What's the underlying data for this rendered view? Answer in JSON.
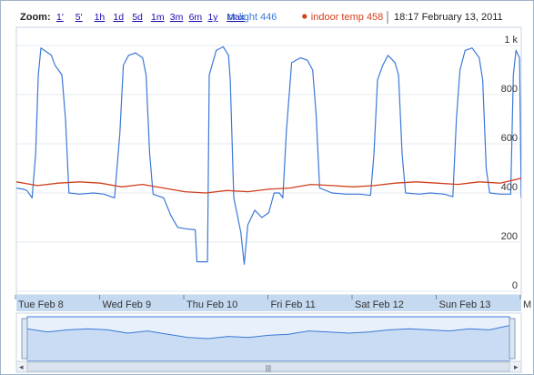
{
  "toolbar": {
    "zoom_label": "Zoom:",
    "zoom_options": [
      "1'",
      "5'",
      "1h",
      "1d",
      "5d",
      "1m",
      "3m",
      "6m",
      "1y",
      "Max"
    ],
    "date_stamp": "18:17 February 13, 2011"
  },
  "legend": [
    {
      "label": "or light 446",
      "color": "#3c78d8"
    },
    {
      "label": "indoor temp 458",
      "color": "#d2401e"
    }
  ],
  "navigator": {
    "grip": "|||"
  },
  "chart_data": {
    "type": "line",
    "x_ticks": [
      "Tue Feb 8",
      "Wed Feb 9",
      "Thu Feb 10",
      "Fri Feb 11",
      "Sat Feb 12",
      "Sun Feb 13",
      "M"
    ],
    "y_ticks": [
      "0",
      "200",
      "400",
      "600",
      "800",
      "1 k"
    ],
    "ylim": [
      0,
      1000
    ],
    "xlim": [
      "2011-02-08T00:00",
      "2011-02-14T00:00"
    ],
    "grid": "horizontal",
    "series": [
      {
        "name": "or light",
        "color": "#3c78d8",
        "points": [
          [
            "2011-02-08T00:00",
            420
          ],
          [
            "2011-02-08T02:00",
            415
          ],
          [
            "2011-02-08T03:00",
            410
          ],
          [
            "2011-02-08T04:30",
            380
          ],
          [
            "2011-02-08T05:30",
            560
          ],
          [
            "2011-02-08T06:15",
            880
          ],
          [
            "2011-02-08T07:00",
            990
          ],
          [
            "2011-02-08T08:30",
            975
          ],
          [
            "2011-02-08T10:00",
            960
          ],
          [
            "2011-02-08T11:00",
            920
          ],
          [
            "2011-02-08T12:00",
            900
          ],
          [
            "2011-02-08T13:00",
            880
          ],
          [
            "2011-02-08T14:00",
            700
          ],
          [
            "2011-02-08T15:00",
            400
          ],
          [
            "2011-02-08T18:00",
            395
          ],
          [
            "2011-02-08T22:00",
            400
          ],
          [
            "2011-02-09T01:00",
            395
          ],
          [
            "2011-02-09T04:00",
            380
          ],
          [
            "2011-02-09T05:30",
            640
          ],
          [
            "2011-02-09T06:30",
            920
          ],
          [
            "2011-02-09T08:00",
            960
          ],
          [
            "2011-02-09T10:00",
            970
          ],
          [
            "2011-02-09T12:00",
            950
          ],
          [
            "2011-02-09T13:00",
            880
          ],
          [
            "2011-02-09T14:00",
            560
          ],
          [
            "2011-02-09T15:00",
            395
          ],
          [
            "2011-02-09T18:00",
            380
          ],
          [
            "2011-02-09T20:00",
            310
          ],
          [
            "2011-02-09T22:00",
            260
          ],
          [
            "2011-02-10T00:00",
            255
          ],
          [
            "2011-02-10T03:00",
            250
          ],
          [
            "2011-02-10T03:30",
            120
          ],
          [
            "2011-02-10T06:30",
            120
          ],
          [
            "2011-02-10T07:00",
            880
          ],
          [
            "2011-02-10T09:00",
            980
          ],
          [
            "2011-02-10T11:00",
            995
          ],
          [
            "2011-02-10T12:30",
            960
          ],
          [
            "2011-02-10T13:00",
            860
          ],
          [
            "2011-02-10T14:00",
            380
          ],
          [
            "2011-02-10T16:00",
            240
          ],
          [
            "2011-02-10T17:00",
            110
          ],
          [
            "2011-02-10T18:00",
            270
          ],
          [
            "2011-02-10T20:00",
            330
          ],
          [
            "2011-02-10T22:00",
            300
          ],
          [
            "2011-02-11T00:00",
            320
          ],
          [
            "2011-02-11T01:30",
            400
          ],
          [
            "2011-02-11T03:00",
            400
          ],
          [
            "2011-02-11T04:00",
            380
          ],
          [
            "2011-02-11T05:00",
            650
          ],
          [
            "2011-02-11T06:30",
            930
          ],
          [
            "2011-02-11T09:00",
            950
          ],
          [
            "2011-02-11T11:00",
            940
          ],
          [
            "2011-02-11T12:30",
            900
          ],
          [
            "2011-02-11T13:30",
            720
          ],
          [
            "2011-02-11T14:30",
            420
          ],
          [
            "2011-02-11T18:00",
            400
          ],
          [
            "2011-02-11T22:00",
            395
          ],
          [
            "2011-02-12T02:00",
            395
          ],
          [
            "2011-02-12T05:00",
            390
          ],
          [
            "2011-02-12T06:00",
            560
          ],
          [
            "2011-02-12T07:00",
            860
          ],
          [
            "2011-02-12T08:30",
            920
          ],
          [
            "2011-02-12T10:00",
            960
          ],
          [
            "2011-02-12T12:00",
            930
          ],
          [
            "2011-02-12T13:00",
            880
          ],
          [
            "2011-02-12T14:00",
            560
          ],
          [
            "2011-02-12T15:00",
            400
          ],
          [
            "2011-02-12T19:00",
            395
          ],
          [
            "2011-02-12T22:00",
            400
          ],
          [
            "2011-02-13T02:00",
            395
          ],
          [
            "2011-02-13T04:30",
            385
          ],
          [
            "2011-02-13T05:30",
            700
          ],
          [
            "2011-02-13T06:30",
            900
          ],
          [
            "2011-02-13T08:00",
            980
          ],
          [
            "2011-02-13T10:00",
            990
          ],
          [
            "2011-02-13T12:00",
            950
          ],
          [
            "2011-02-13T13:00",
            860
          ],
          [
            "2011-02-13T14:00",
            500
          ],
          [
            "2011-02-13T15:00",
            400
          ],
          [
            "2011-02-13T18:00",
            395
          ],
          [
            "2011-02-13T21:00",
            395
          ],
          [
            "2011-02-13T21:45",
            880
          ],
          [
            "2011-02-13T22:30",
            980
          ],
          [
            "2011-02-13T23:30",
            950
          ],
          [
            "2011-02-14T00:00",
            380
          ]
        ]
      },
      {
        "name": "indoor temp",
        "color": "#d2401e",
        "points": [
          [
            "2011-02-08T00:00",
            445
          ],
          [
            "2011-02-08T06:00",
            430
          ],
          [
            "2011-02-08T12:00",
            440
          ],
          [
            "2011-02-08T18:00",
            445
          ],
          [
            "2011-02-09T00:00",
            440
          ],
          [
            "2011-02-09T06:00",
            425
          ],
          [
            "2011-02-09T12:00",
            435
          ],
          [
            "2011-02-09T18:00",
            420
          ],
          [
            "2011-02-10T00:00",
            405
          ],
          [
            "2011-02-10T06:00",
            400
          ],
          [
            "2011-02-10T12:00",
            410
          ],
          [
            "2011-02-10T18:00",
            405
          ],
          [
            "2011-02-11T00:00",
            415
          ],
          [
            "2011-02-11T06:00",
            420
          ],
          [
            "2011-02-11T12:00",
            435
          ],
          [
            "2011-02-11T18:00",
            430
          ],
          [
            "2011-02-12T00:00",
            425
          ],
          [
            "2011-02-12T06:00",
            430
          ],
          [
            "2011-02-12T12:00",
            440
          ],
          [
            "2011-02-12T18:00",
            445
          ],
          [
            "2011-02-13T00:00",
            440
          ],
          [
            "2011-02-13T06:00",
            435
          ],
          [
            "2011-02-13T12:00",
            445
          ],
          [
            "2011-02-13T18:00",
            440
          ],
          [
            "2011-02-14T00:00",
            460
          ]
        ]
      }
    ]
  }
}
